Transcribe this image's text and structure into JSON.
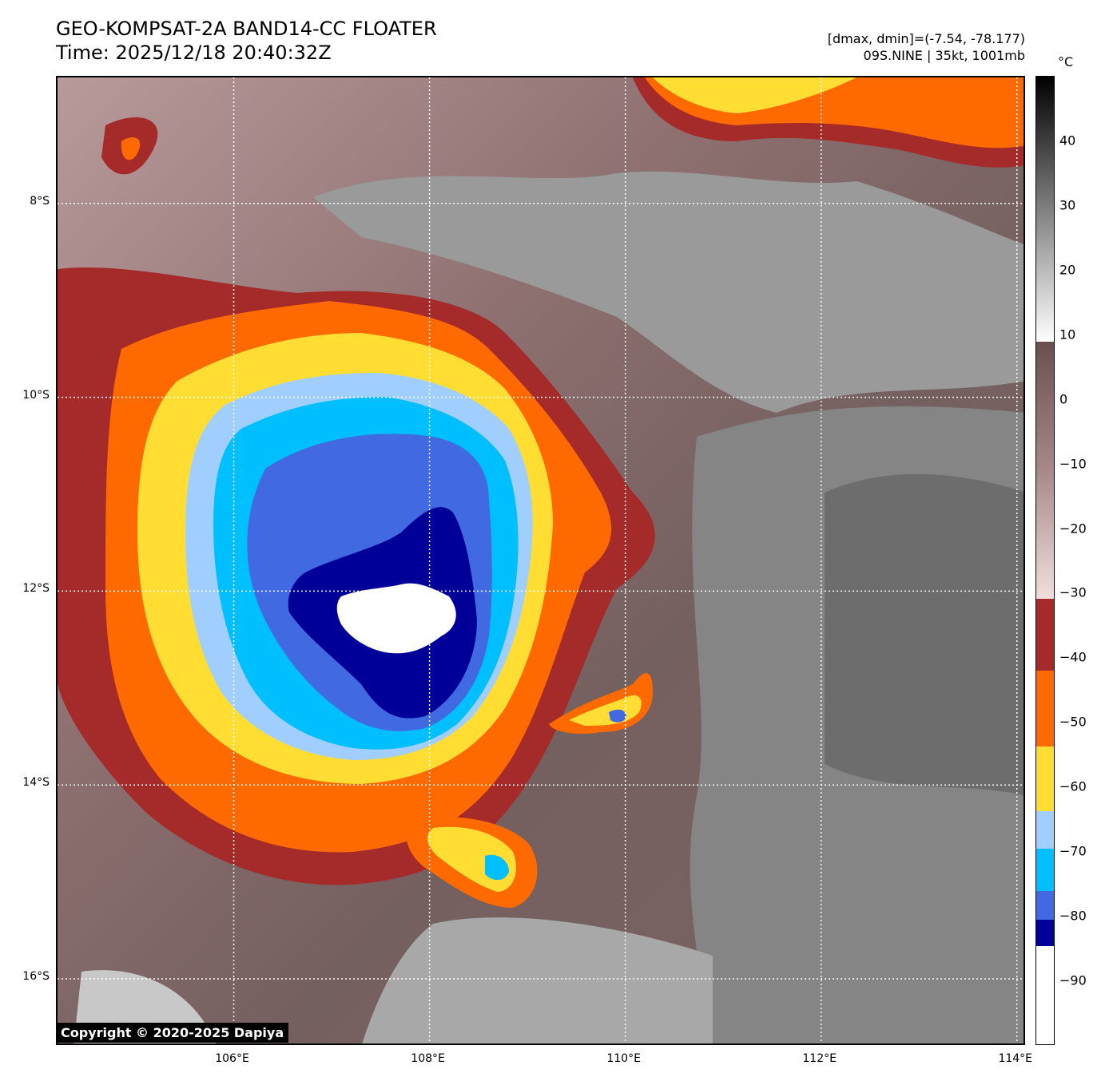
{
  "header": {
    "title_line1": "GEO-KOMPSAT-2A BAND14-CC FLOATER",
    "title_line2": "Time: 2025/12/18 20:40:32Z",
    "info_line1": "[dmax, dmin]=(-7.54, -78.177)",
    "info_line2": "09S.NINE | 35kt, 1001mb"
  },
  "map": {
    "lon_range": [
      104.2,
      114.1
    ],
    "lat_range": [
      -16.7,
      -6.7
    ],
    "lat_labels": [
      "8°S",
      "10°S",
      "12°S",
      "14°S",
      "16°S"
    ],
    "lat_values": [
      -8,
      -10,
      -12,
      -14,
      -16
    ],
    "lon_labels": [
      "106°E",
      "108°E",
      "110°E",
      "112°E",
      "114°E"
    ],
    "lon_values": [
      106,
      108,
      110,
      112,
      114
    ],
    "copyright": "Copyright © 2020-2025 Dapiya",
    "storm_center": [
      107.9,
      -12.2
    ],
    "colors": {
      "background": "#7a6060",
      "red": "#a52a2a",
      "orange": "#ff6a00",
      "yellow": "#ffdd33",
      "lightblue": "#a0cfff",
      "cyan": "#00bfff",
      "royal": "#4169e1",
      "navy": "#000099",
      "white": "#ffffff",
      "gray": "#8a8a8a"
    }
  },
  "colorbar": {
    "unit": "°C",
    "range": [
      -100,
      50
    ],
    "ticks": [
      "40",
      "30",
      "20",
      "10",
      "0",
      "−10",
      "−20",
      "−30",
      "−40",
      "−50",
      "−60",
      "−70",
      "−80",
      "−90"
    ],
    "tick_values": [
      40,
      30,
      20,
      10,
      0,
      -10,
      -20,
      -30,
      -40,
      -50,
      -60,
      -70,
      -80,
      -90
    ]
  }
}
